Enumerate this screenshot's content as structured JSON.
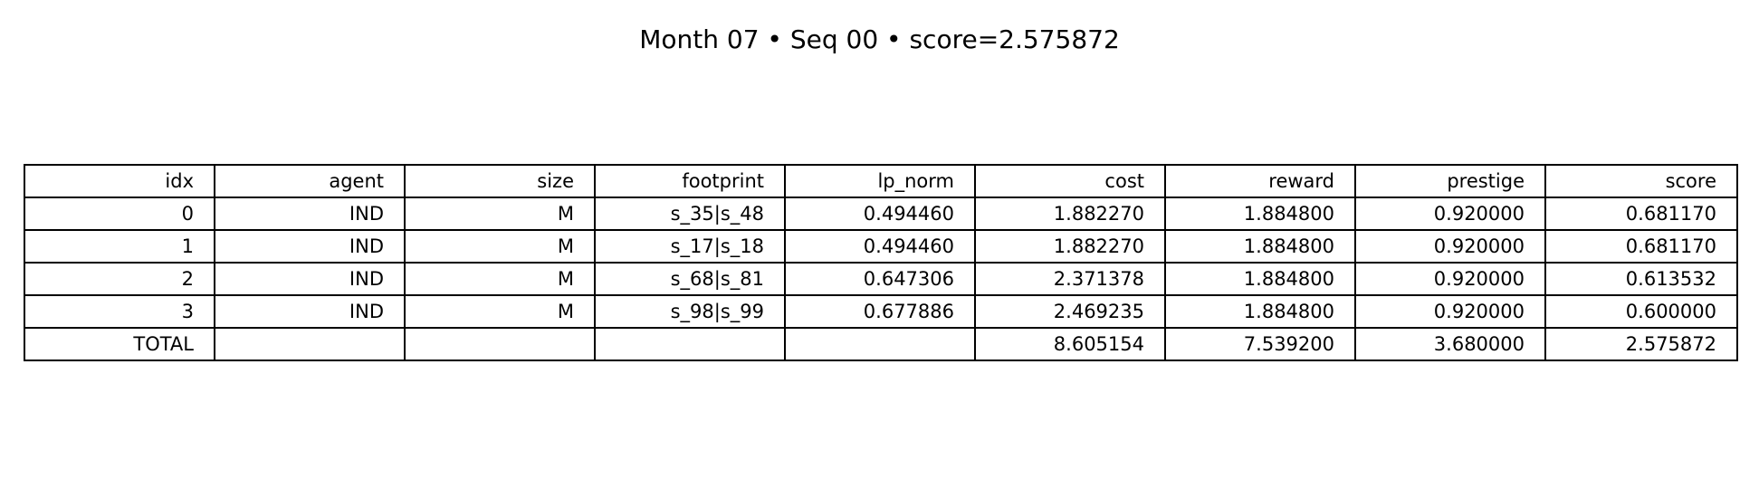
{
  "chart_data": {
    "type": "table",
    "title": "Month 07 • Seq 00 • score=2.575872",
    "columns": [
      "idx",
      "agent",
      "size",
      "footprint",
      "lp_norm",
      "cost",
      "reward",
      "prestige",
      "score"
    ],
    "rows": [
      [
        "0",
        "IND",
        "M",
        "s_35|s_48",
        "0.494460",
        "1.882270",
        "1.884800",
        "0.920000",
        "0.681170"
      ],
      [
        "1",
        "IND",
        "M",
        "s_17|s_18",
        "0.494460",
        "1.882270",
        "1.884800",
        "0.920000",
        "0.681170"
      ],
      [
        "2",
        "IND",
        "M",
        "s_68|s_81",
        "0.647306",
        "2.371378",
        "1.884800",
        "0.920000",
        "0.613532"
      ],
      [
        "3",
        "IND",
        "M",
        "s_98|s_99",
        "0.677886",
        "2.469235",
        "1.884800",
        "0.920000",
        "0.600000"
      ],
      [
        "TOTAL",
        "",
        "",
        "",
        "",
        "8.605154",
        "7.539200",
        "3.680000",
        "2.575872"
      ]
    ]
  }
}
